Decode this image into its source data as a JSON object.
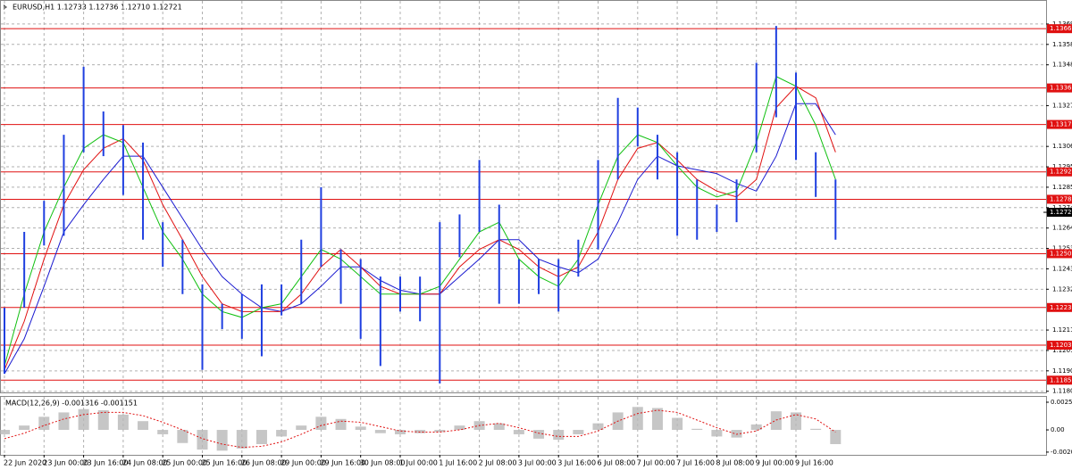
{
  "chart_data": {
    "type": "ohlc",
    "title": "EURUSD,H1  1.12733 1.12736 1.12710 1.12721",
    "categories": [
      "22 Jun 2020",
      null,
      "23 Jun 00:00",
      null,
      "23 Jun 16:00",
      null,
      "24 Jun 08:00",
      null,
      "25 Jun 00:00",
      null,
      "25 Jun 16:00",
      null,
      "26 Jun 08:00",
      null,
      "29 Jun 00:00",
      null,
      "29 Jun 16:00",
      null,
      "30 Jun 08:00",
      null,
      "1 Jul 00:00",
      null,
      "1 Jul 16:00",
      null,
      "2 Jul 08:00",
      null,
      "3 Jul 00:00",
      null,
      "3 Jul 16:00",
      null,
      "6 Jul 08:00",
      null,
      "7 Jul 00:00",
      null,
      "7 Jul 16:00",
      null,
      "8 Jul 08:00",
      null,
      "9 Jul 00:00",
      null,
      "9 Jul 16:00",
      null,
      null
    ],
    "price": {
      "color": "#1f3fe0",
      "high": [
        1.1223,
        1.1262,
        1.1278,
        1.1312,
        1.1347,
        1.1324,
        1.1317,
        1.1308,
        1.1267,
        1.1258,
        1.1235,
        1.1225,
        1.123,
        1.1235,
        1.1235,
        1.1258,
        1.1285,
        1.1253,
        1.1248,
        1.1239,
        1.1239,
        1.1239,
        1.1267,
        1.1271,
        1.1299,
        1.1276,
        1.1248,
        1.1248,
        1.1248,
        1.1258,
        1.1299,
        1.1331,
        1.1326,
        1.1312,
        1.1303,
        1.1289,
        1.1276,
        1.1289,
        1.1349,
        1.1368,
        1.1344,
        1.1303,
        1.1289
      ],
      "low": [
        1.1189,
        1.1223,
        1.1255,
        1.126,
        1.1303,
        1.1301,
        1.1281,
        1.1258,
        1.1244,
        1.123,
        1.1191,
        1.1212,
        1.1207,
        1.1198,
        1.1219,
        1.1225,
        1.1244,
        1.1225,
        1.1207,
        1.1193,
        1.1221,
        1.1216,
        1.1184,
        1.1249,
        1.1262,
        1.1225,
        1.1225,
        1.123,
        1.1221,
        1.1239,
        1.1253,
        1.1289,
        1.1306,
        1.1289,
        1.126,
        1.1258,
        1.1262,
        1.1267,
        1.1303,
        1.1321,
        1.1299,
        1.128,
        1.1258
      ]
    },
    "moving_averages": [
      {
        "color": "#1a1ad0",
        "values": [
          1.1189,
          1.1207,
          1.1234,
          1.1262,
          1.1276,
          1.1289,
          1.1301,
          1.1301,
          1.1285,
          1.1269,
          1.1253,
          1.1239,
          1.123,
          1.1223,
          1.1221,
          1.1225,
          1.1234,
          1.1244,
          1.1244,
          1.1237,
          1.1232,
          1.123,
          1.123,
          1.1239,
          1.1248,
          1.1258,
          1.1258,
          1.1248,
          1.1244,
          1.1241,
          1.1248,
          1.1267,
          1.1289,
          1.1301,
          1.1296,
          1.1294,
          1.1292,
          1.1287,
          1.1283,
          1.1301,
          1.1328,
          1.1328,
          1.1312
        ]
      },
      {
        "color": "#e01010",
        "values": [
          1.1191,
          1.1216,
          1.1248,
          1.1276,
          1.1294,
          1.1305,
          1.131,
          1.1299,
          1.1276,
          1.1258,
          1.1239,
          1.1225,
          1.1221,
          1.1221,
          1.1221,
          1.123,
          1.1244,
          1.1253,
          1.1244,
          1.1234,
          1.123,
          1.123,
          1.123,
          1.1244,
          1.1253,
          1.1258,
          1.1253,
          1.1244,
          1.1239,
          1.1244,
          1.1262,
          1.1289,
          1.1305,
          1.1308,
          1.1299,
          1.1289,
          1.1283,
          1.128,
          1.1289,
          1.1326,
          1.1337,
          1.1331,
          1.1303
        ]
      },
      {
        "color": "#10c010",
        "values": [
          1.1193,
          1.123,
          1.1262,
          1.1285,
          1.1305,
          1.1312,
          1.1308,
          1.1285,
          1.1262,
          1.1248,
          1.123,
          1.1221,
          1.1218,
          1.1223,
          1.1225,
          1.1239,
          1.1253,
          1.1248,
          1.1239,
          1.123,
          1.123,
          1.123,
          1.1234,
          1.1248,
          1.1262,
          1.1267,
          1.1248,
          1.1239,
          1.1234,
          1.1248,
          1.1276,
          1.1301,
          1.1312,
          1.1308,
          1.1296,
          1.1285,
          1.128,
          1.1283,
          1.1308,
          1.1342,
          1.1337,
          1.1317,
          1.1289
        ]
      }
    ],
    "levels": [
      1.13666,
      1.13361,
      1.13173,
      1.12929,
      1.12788,
      1.12508,
      1.12231,
      1.12037,
      1.11857
    ],
    "level_color": "#e01010",
    "last_price": 1.12721,
    "ylim": [
      1.11794,
      1.13809
    ],
    "yticks": [
      {
        "value": 1.1369,
        "label": "1.13690"
      },
      1.13585,
      {
        "value": 1.1348,
        "label": "1.13480"
      },
      {
        "value": 1.1327,
        "label": "1.13270"
      },
      {
        "value": 1.1306,
        "label": "1.13060"
      },
      1.12955,
      {
        "value": 1.1285,
        "label": "1.12850"
      },
      1.12745,
      {
        "value": 1.1264,
        "label": "1.12640"
      },
      1.12535,
      {
        "value": 1.1243,
        "label": "1.12430"
      },
      1.12325,
      1.12115,
      {
        "value": 1.1201,
        "label": "1.12010"
      },
      1.11905,
      {
        "value": 1.118,
        "label": "1.11800"
      }
    ],
    "grid": true,
    "macd": {
      "label": "MACD(12,26,9) -0.001316 -0.001151",
      "histogram_color": "#b8b8b8",
      "signal_color": "#e01010",
      "histogram": [
        -0.0004,
        0.0004,
        0.0012,
        0.0016,
        0.0019,
        0.0018,
        0.0014,
        0.0008,
        -0.0004,
        -0.0012,
        -0.0018,
        -0.0019,
        -0.0017,
        -0.0013,
        -0.0006,
        0.0004,
        0.0012,
        0.001,
        0.0003,
        -0.0003,
        -0.0004,
        -0.0003,
        -0.0002,
        0.0004,
        0.0008,
        0.0006,
        -0.0004,
        -0.0008,
        -0.0009,
        -0.0004,
        0.0006,
        0.0016,
        0.0021,
        0.002,
        0.0011,
        0.0001,
        -0.0006,
        -0.0007,
        0.0005,
        0.0017,
        0.0016,
        0.0001,
        -0.0013
      ],
      "signal": [
        -0.0008,
        -0.0003,
        0.0004,
        0.001,
        0.0014,
        0.0016,
        0.0016,
        0.0013,
        0.0007,
        0,
        -0.0008,
        -0.0013,
        -0.0016,
        -0.0015,
        -0.0011,
        -0.0004,
        0.0004,
        0.0008,
        0.0007,
        0.0003,
        -0.0001,
        -0.0002,
        -0.0002,
        0,
        0.0004,
        0.0006,
        0.0002,
        -0.0003,
        -0.0006,
        -0.0006,
        -0.0001,
        0.0008,
        0.0015,
        0.0018,
        0.0016,
        0.0009,
        0.0002,
        -0.0004,
        -0.0001,
        0.0009,
        0.0014,
        0.001,
        -0.0002
      ],
      "ylim": [
        -0.00228,
        0.00302
      ],
      "yticks": [
        0.002531,
        {
          "value": 0,
          "label": "0.00"
        },
        -0.00203
      ]
    }
  }
}
